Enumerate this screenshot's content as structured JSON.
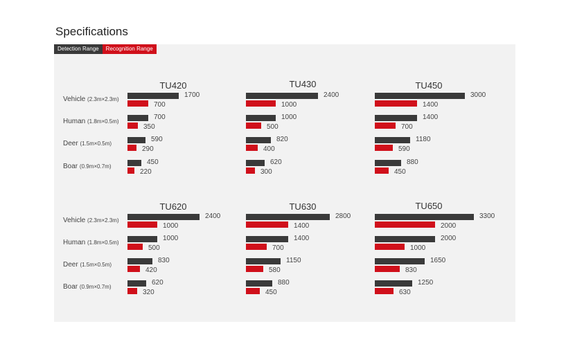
{
  "page": {
    "title": "Specifications"
  },
  "legend": {
    "detection_label": "Detection Range",
    "recognition_label": "Recognition Range",
    "detection_color": "#3a3a3a",
    "recognition_color": "#d0101b"
  },
  "chart_data": [
    {
      "type": "bar",
      "orientation": "horizontal",
      "title": "TU420",
      "categories": [
        "Vehicle",
        "Human",
        "Deer",
        "Boar"
      ],
      "category_sizes": [
        "(2.3m×2.3m)",
        "(1.8m×0.5m)",
        "(1.5m×0.5m)",
        "(0.9m×0.7m)"
      ],
      "series": [
        {
          "name": "Detection Range",
          "values": [
            1700,
            700,
            590,
            450
          ]
        },
        {
          "name": "Recognition Range",
          "values": [
            700,
            350,
            290,
            220
          ]
        }
      ]
    },
    {
      "type": "bar",
      "orientation": "horizontal",
      "title": "TU430",
      "categories": [
        "Vehicle",
        "Human",
        "Deer",
        "Boar"
      ],
      "category_sizes": [
        "(2.3m×2.3m)",
        "(1.8m×0.5m)",
        "(1.5m×0.5m)",
        "(0.9m×0.7m)"
      ],
      "series": [
        {
          "name": "Detection Range",
          "values": [
            2400,
            1000,
            820,
            620
          ]
        },
        {
          "name": "Recognition Range",
          "values": [
            1000,
            500,
            400,
            300
          ]
        }
      ]
    },
    {
      "type": "bar",
      "orientation": "horizontal",
      "title": "TU450",
      "categories": [
        "Vehicle",
        "Human",
        "Deer",
        "Boar"
      ],
      "category_sizes": [
        "(2.3m×2.3m)",
        "(1.8m×0.5m)",
        "(1.5m×0.5m)",
        "(0.9m×0.7m)"
      ],
      "series": [
        {
          "name": "Detection Range",
          "values": [
            3000,
            1400,
            1180,
            880
          ]
        },
        {
          "name": "Recognition Range",
          "values": [
            1400,
            700,
            590,
            450
          ]
        }
      ]
    },
    {
      "type": "bar",
      "orientation": "horizontal",
      "title": "TU620",
      "categories": [
        "Vehicle",
        "Human",
        "Deer",
        "Boar"
      ],
      "category_sizes": [
        "(2.3m×2.3m)",
        "(1.8m×0.5m)",
        "(1.5m×0.5m)",
        "(0.9m×0.7m)"
      ],
      "series": [
        {
          "name": "Detection Range",
          "values": [
            2400,
            1000,
            830,
            620
          ]
        },
        {
          "name": "Recognition Range",
          "values": [
            1000,
            500,
            420,
            320
          ]
        }
      ]
    },
    {
      "type": "bar",
      "orientation": "horizontal",
      "title": "TU630",
      "categories": [
        "Vehicle",
        "Human",
        "Deer",
        "Boar"
      ],
      "category_sizes": [
        "(2.3m×2.3m)",
        "(1.8m×0.5m)",
        "(1.5m×0.5m)",
        "(0.9m×0.7m)"
      ],
      "series": [
        {
          "name": "Detection Range",
          "values": [
            2800,
            1400,
            1150,
            880
          ]
        },
        {
          "name": "Recognition Range",
          "values": [
            1400,
            700,
            580,
            450
          ]
        }
      ]
    },
    {
      "type": "bar",
      "orientation": "horizontal",
      "title": "TU650",
      "categories": [
        "Vehicle",
        "Human",
        "Deer",
        "Boar"
      ],
      "category_sizes": [
        "(2.3m×2.3m)",
        "(1.8m×0.5m)",
        "(1.5m×0.5m)",
        "(0.9m×0.7m)"
      ],
      "series": [
        {
          "name": "Detection Range",
          "values": [
            3300,
            2000,
            1650,
            1250
          ]
        },
        {
          "name": "Recognition Range",
          "values": [
            2000,
            1000,
            830,
            630
          ]
        }
      ]
    }
  ]
}
